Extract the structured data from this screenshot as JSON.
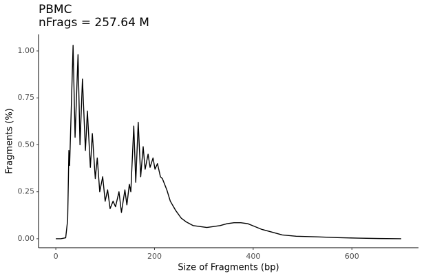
{
  "chart_data": {
    "type": "line",
    "title": "PBMC",
    "subtitle": "nFrags = 257.64 M",
    "x_label": "Size of Fragments (bp)",
    "y_label": "Fragments (%)",
    "x": [
      0,
      10,
      20,
      24,
      26.5,
      28,
      35,
      39,
      45,
      49,
      54,
      60,
      64,
      70,
      74,
      80,
      84,
      89,
      95,
      100,
      105,
      110,
      116,
      121,
      128,
      133,
      140,
      144,
      149,
      152,
      158,
      162,
      167,
      172,
      177,
      181,
      187,
      191,
      197,
      201,
      206,
      212,
      216,
      225,
      232,
      243,
      254,
      264,
      278,
      292,
      306,
      320,
      333,
      347,
      361,
      375,
      389,
      403,
      417,
      438,
      459,
      487,
      529,
      571,
      613,
      655,
      700
    ],
    "series": [
      {
        "name": "PBMC",
        "color": "#000000",
        "values": [
          0,
          0,
          0.005,
          0.1,
          0.47,
          0.39,
          1.03,
          0.54,
          0.98,
          0.5,
          0.85,
          0.47,
          0.68,
          0.38,
          0.56,
          0.32,
          0.43,
          0.25,
          0.33,
          0.2,
          0.26,
          0.16,
          0.2,
          0.17,
          0.25,
          0.14,
          0.26,
          0.18,
          0.29,
          0.25,
          0.6,
          0.3,
          0.62,
          0.33,
          0.49,
          0.37,
          0.45,
          0.38,
          0.43,
          0.37,
          0.4,
          0.33,
          0.32,
          0.26,
          0.2,
          0.15,
          0.11,
          0.09,
          0.07,
          0.065,
          0.06,
          0.065,
          0.07,
          0.08,
          0.085,
          0.085,
          0.08,
          0.065,
          0.05,
          0.035,
          0.02,
          0.013,
          0.01,
          0.006,
          0.003,
          0.001,
          0
        ]
      }
    ],
    "xlim": [
      -35,
      735
    ],
    "ylim": [
      -0.048,
      1.088
    ],
    "xticks": [
      0,
      200,
      400,
      600
    ],
    "yticks": [
      {
        "value": 0,
        "label": "0.00"
      },
      {
        "value": 0.25,
        "label": "0.25"
      },
      {
        "value": 0.5,
        "label": "0.50"
      },
      {
        "value": 0.75,
        "label": "0.75"
      },
      {
        "value": 1,
        "label": "1.00"
      }
    ],
    "grid": false
  }
}
